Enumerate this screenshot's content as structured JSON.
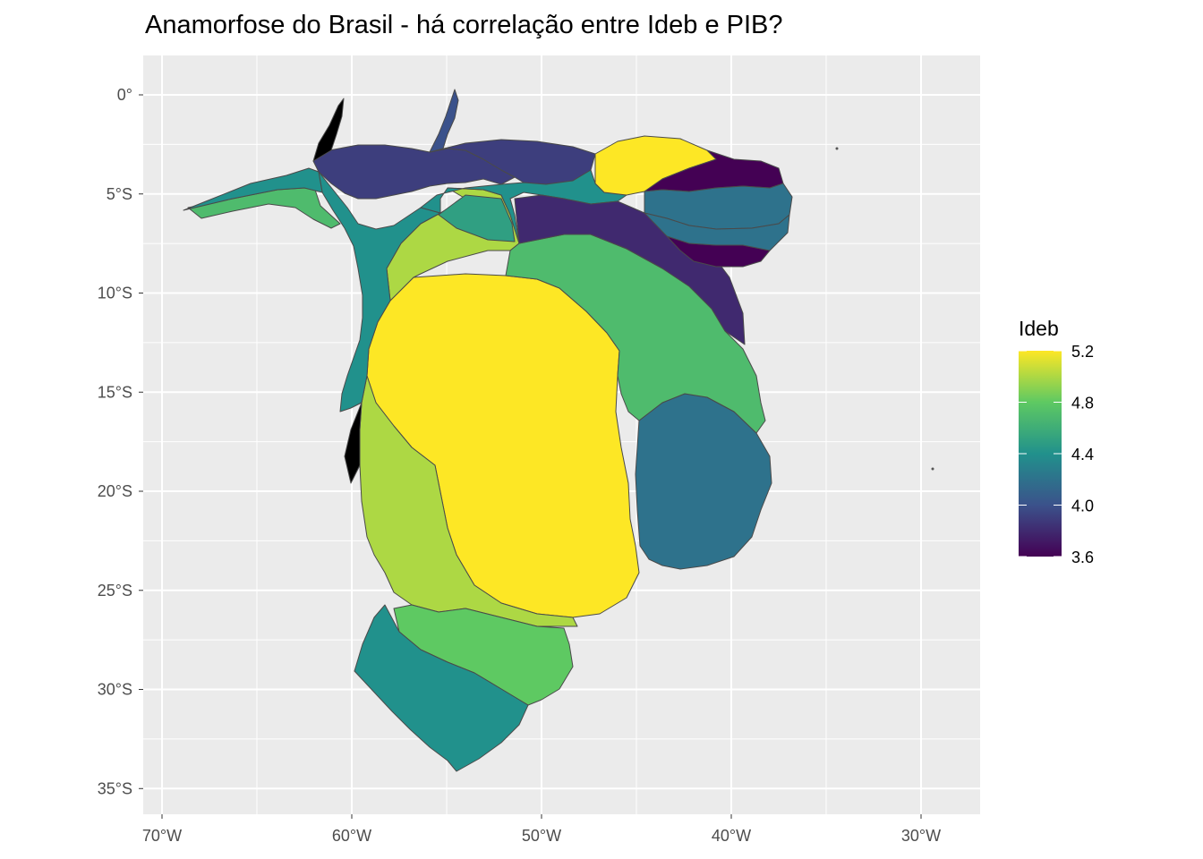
{
  "chart_data": {
    "type": "choropleth_map",
    "title": "Anamorfose do Brasil - há correlação entre Ideb e PIB?",
    "projection": "cartogram (anamorphosis) of Brazilian states",
    "x_axis": {
      "range": [
        -71,
        -27
      ],
      "ticks": [
        -70,
        -60,
        -50,
        -40,
        -30
      ],
      "tick_labels": [
        "70°W",
        "60°W",
        "50°W",
        "40°W",
        "30°W"
      ]
    },
    "y_axis": {
      "range": [
        -35.5,
        2
      ],
      "ticks": [
        0,
        -5,
        -10,
        -15,
        -20,
        -25,
        -30,
        -35
      ],
      "tick_labels": [
        "0°",
        "5°S",
        "10°S",
        "15°S",
        "20°S",
        "25°S",
        "30°S",
        "35°S"
      ]
    },
    "grid": true,
    "panel_background": "#ebebeb",
    "legend": {
      "title": "Ideb",
      "position": "right",
      "scale": "viridis",
      "range": [
        3.6,
        5.2
      ],
      "breaks": [
        5.2,
        4.8,
        4.4,
        4.0,
        3.6
      ],
      "break_labels": [
        "5.2",
        "4.8",
        "4.4",
        "4.0",
        "3.6"
      ]
    },
    "regions_ideb": {
      "Sao Paulo": 5.2,
      "Ceara": 5.2,
      "Parana": 5.0,
      "Goias": 5.0,
      "Santa Catarina": 4.8,
      "Minas Gerais": 4.7,
      "Acre": 4.7,
      "Tocantins": 4.5,
      "Rondonia": 4.4,
      "Rio Grande do Sul": 4.4,
      "Mato Grosso": 4.4,
      "Maranhao": 4.4,
      "Rio de Janeiro": 4.2,
      "Paraiba": 4.2,
      "Amapa": 4.0,
      "Amazonas": 3.9,
      "Para": 3.9,
      "Bahia": 3.8,
      "Rio Grande do Norte": 3.6,
      "Sergipe": 3.6
    }
  }
}
